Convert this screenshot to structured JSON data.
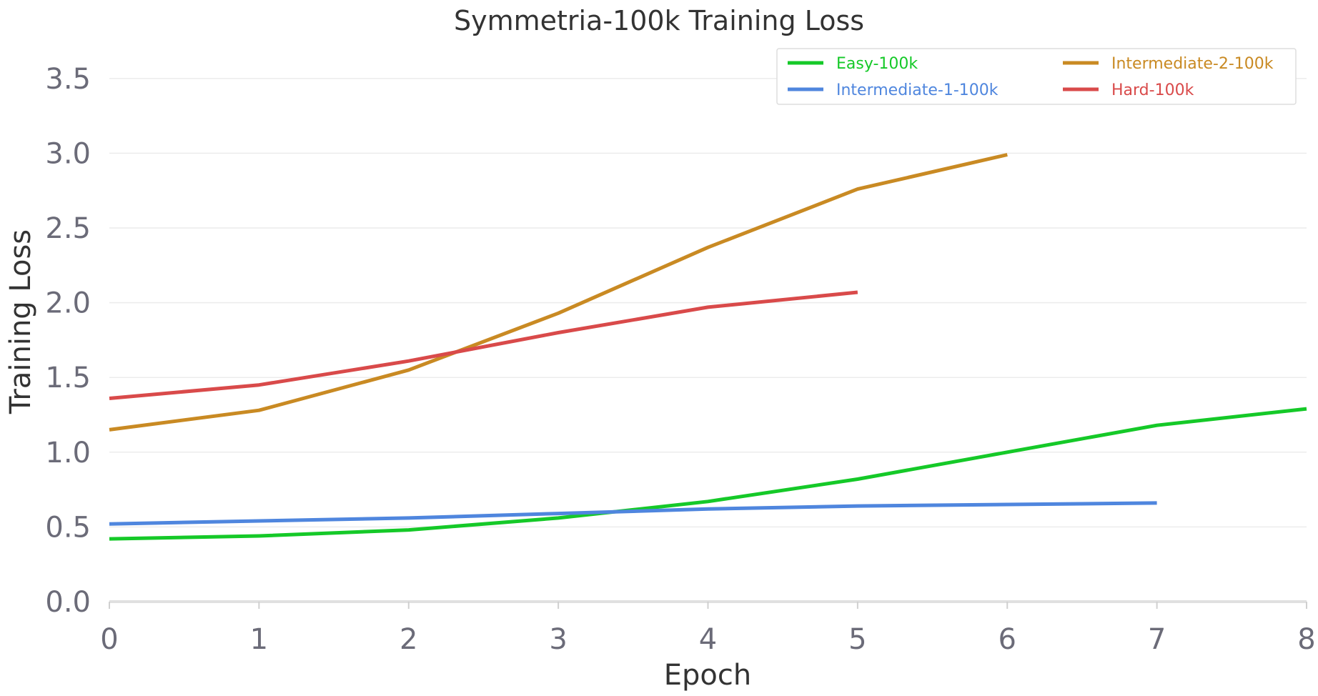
{
  "chart_data": {
    "type": "line",
    "title": "Symmetria-100k Training Loss",
    "xlabel": "Epoch",
    "ylabel": "Training Loss",
    "xlim": [
      0,
      8
    ],
    "ylim": [
      0,
      3.7
    ],
    "xticks": [
      "0",
      "1",
      "2",
      "3",
      "4",
      "5",
      "6",
      "7",
      "8"
    ],
    "yticks": [
      "0.0",
      "0.5",
      "1.0",
      "1.5",
      "2.0",
      "2.5",
      "3.0",
      "3.5"
    ],
    "grid": "horizontal",
    "legend_position": "top-right",
    "series": [
      {
        "name": "Easy-100k",
        "color": "#15c928",
        "x": [
          0,
          1,
          2,
          3,
          4,
          5,
          6,
          7,
          8
        ],
        "y": [
          0.42,
          0.44,
          0.48,
          0.56,
          0.67,
          0.82,
          1.0,
          1.18,
          1.29
        ]
      },
      {
        "name": "Intermediate-1-100k",
        "color": "#4f86de",
        "x": [
          0,
          1,
          2,
          3,
          4,
          5,
          6,
          7
        ],
        "y": [
          0.52,
          0.54,
          0.56,
          0.59,
          0.62,
          0.64,
          0.65,
          0.66
        ]
      },
      {
        "name": "Intermediate-2-100k",
        "color": "#c98a23",
        "x": [
          0,
          1,
          2,
          3,
          4,
          5,
          6
        ],
        "y": [
          1.15,
          1.28,
          1.55,
          1.93,
          2.37,
          2.76,
          2.99
        ]
      },
      {
        "name": "Hard-100k",
        "color": "#d94a4a",
        "x": [
          0,
          1,
          2,
          3,
          4,
          5
        ],
        "y": [
          1.36,
          1.45,
          1.61,
          1.8,
          1.97,
          2.07
        ]
      }
    ]
  }
}
